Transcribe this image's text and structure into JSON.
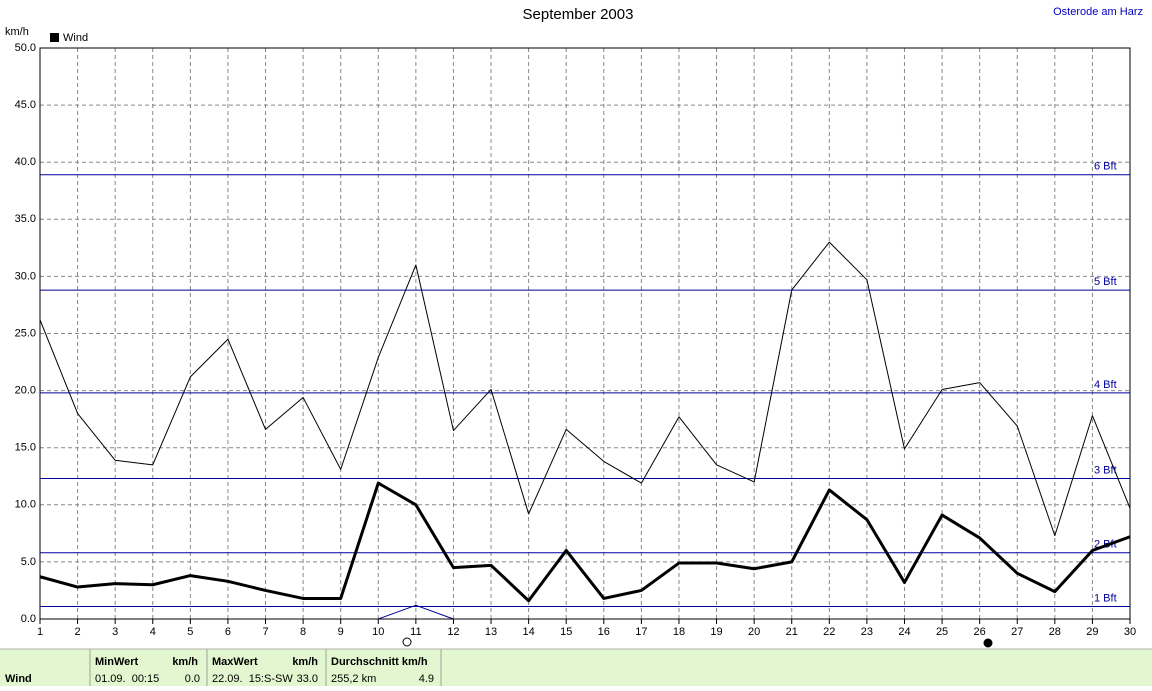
{
  "chart_data": {
    "type": "line",
    "title": "September 2003",
    "station": "Osterode am Harz",
    "y_label": "km/h",
    "x": [
      1,
      2,
      3,
      4,
      5,
      6,
      7,
      8,
      9,
      10,
      11,
      12,
      13,
      14,
      15,
      16,
      17,
      18,
      19,
      20,
      21,
      22,
      23,
      24,
      25,
      26,
      27,
      28,
      29,
      30
    ],
    "xlim": [
      1,
      30
    ],
    "xticks": [
      1,
      2,
      3,
      4,
      5,
      6,
      7,
      8,
      9,
      10,
      11,
      12,
      13,
      14,
      15,
      16,
      17,
      18,
      19,
      20,
      21,
      22,
      23,
      24,
      25,
      26,
      27,
      28,
      29,
      30
    ],
    "ylim": [
      0,
      50
    ],
    "yticks": [
      {
        "value": 0,
        "label": "0.0"
      },
      {
        "value": 5,
        "label": "5.0"
      },
      {
        "value": 10,
        "label": "10.0"
      },
      {
        "value": 15,
        "label": "15.0"
      },
      {
        "value": 20,
        "label": "20.0"
      },
      {
        "value": 25,
        "label": "25.0"
      },
      {
        "value": 30,
        "label": "30.0"
      },
      {
        "value": 35,
        "label": "35.0"
      },
      {
        "value": 40,
        "label": "40.0"
      },
      {
        "value": 45,
        "label": "45.0"
      },
      {
        "value": 50,
        "label": "50.0"
      }
    ],
    "grid": true,
    "series": [
      {
        "name": "Wind",
        "color": "#000000",
        "width": 3,
        "values": [
          3.7,
          2.8,
          3.1,
          3.0,
          3.8,
          3.3,
          2.5,
          1.8,
          1.8,
          11.9,
          10.0,
          4.5,
          4.7,
          1.6,
          6.0,
          1.8,
          2.5,
          4.9,
          4.9,
          4.4,
          5.0,
          11.3,
          8.7,
          3.2,
          9.1,
          7.1,
          4.0,
          2.4,
          6.0,
          7.2
        ]
      },
      {
        "color": "#000000",
        "width": 1,
        "values": [
          26.2,
          18.0,
          13.9,
          13.5,
          21.2,
          24.5,
          16.6,
          19.4,
          13.1,
          22.9,
          31.0,
          16.5,
          20.1,
          9.2,
          16.6,
          13.8,
          11.9,
          17.7,
          13.5,
          12.0,
          28.8,
          33.0,
          29.7,
          14.9,
          20.1,
          20.7,
          16.9,
          7.3,
          17.8,
          9.7
        ]
      },
      {
        "color": "#0000a0",
        "width": 1,
        "values": [
          null,
          null,
          null,
          null,
          null,
          null,
          null,
          null,
          null,
          0,
          1.2,
          0,
          null,
          null,
          null,
          null,
          null,
          null,
          null,
          null,
          null,
          null,
          null,
          null,
          null,
          null,
          null,
          null,
          null,
          null
        ]
      }
    ],
    "bft_color": "#0000a0",
    "bft_lines": [
      {
        "value": 1.1,
        "label": "1 Bft"
      },
      {
        "value": 5.8,
        "label": "2 Bft"
      },
      {
        "value": 12.3,
        "label": "3 Bft"
      },
      {
        "value": 19.8,
        "label": "4 Bft"
      },
      {
        "value": 28.8,
        "label": "5 Bft"
      },
      {
        "value": 38.9,
        "label": "6 Bft"
      }
    ]
  },
  "summary": {
    "row_label": "Wind",
    "cells": [
      {
        "header": "MinWert",
        "unit": "km/h",
        "when": "01.09.  00:15",
        "value": "0.0"
      },
      {
        "header": "MaxWert",
        "unit": "km/h",
        "when": "22.09.  15:S-SW",
        "value": "33.0"
      },
      {
        "header": "Durchschnitt km/h",
        "when": "255,2 km",
        "value": "4.9"
      }
    ]
  }
}
